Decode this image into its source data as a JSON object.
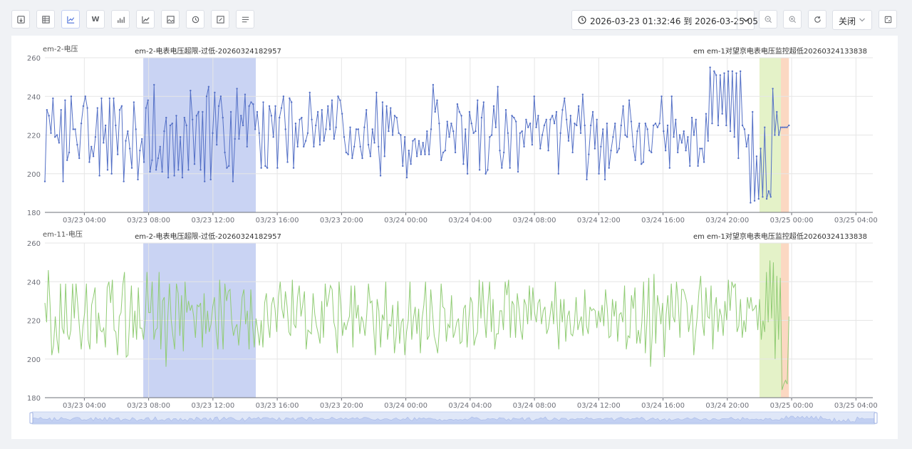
{
  "toolbar": {
    "buttons": [
      {
        "icon": "export-icon"
      },
      {
        "icon": "table-icon"
      },
      {
        "icon": "line-chart-icon",
        "active": true
      },
      {
        "icon": "w-icon",
        "label": "W"
      },
      {
        "icon": "bar-chart-icon"
      },
      {
        "icon": "trend-icon"
      },
      {
        "icon": "image-icon"
      },
      {
        "icon": "history-icon"
      },
      {
        "icon": "picture-edit-icon"
      },
      {
        "icon": "list-icon"
      }
    ],
    "date_range": "2026-03-23 01:32:46 到 2026-03-25 05:03",
    "zoom_out_icon": "zoom-out-icon",
    "zoom_in_icon": "zoom-in-icon",
    "refresh_icon": "refresh-icon",
    "select_value": "关闭",
    "fullscreen_icon": "fullscreen-icon"
  },
  "colors": {
    "series1": "#5470c6",
    "series2": "#91cc75",
    "band_blue": "#c9d3f3",
    "band_green": "#e4f2c8",
    "band_orange": "#fbd8c2",
    "grid": "#e6e6e6",
    "axis": "#6e7079"
  },
  "chart_data": [
    {
      "type": "line",
      "title": "em-2-电压",
      "x_start": "2026-03-23 01:32:46",
      "x_end": "2026-03-25 05:03",
      "x_ticks": [
        "03/23 04:00",
        "03/23 08:00",
        "03/23 12:00",
        "03/23 16:00",
        "03/23 20:00",
        "03/24 00:00",
        "03/24 04:00",
        "03/24 08:00",
        "03/24 12:00",
        "03/24 16:00",
        "03/24 20:00",
        "03/25 00:00",
        "03/25 04:00"
      ],
      "ylim": [
        180,
        260
      ],
      "y_ticks": [
        180,
        200,
        220,
        240,
        260
      ],
      "annotations": [
        {
          "label": "em-2-电表电压超限-过低-20260324182957",
          "start": "2026-03-23 07:40",
          "end": "2026-03-23 14:40",
          "color": "band_blue"
        },
        {
          "label": "em em-1对望京电表电压监控超低20260324133838",
          "start": "2026-03-24 22:00",
          "end": "2026-03-24 23:20",
          "color": "band_green"
        },
        {
          "label": "",
          "start": "2026-03-24 23:20",
          "end": "2026-03-24 23:50",
          "color": "band_orange"
        }
      ],
      "series": [
        {
          "values": [
            196,
            233,
            230,
            221,
            239,
            219,
            220,
            216,
            233,
            196,
            238,
            207,
            211,
            240,
            223,
            223,
            215,
            208,
            226,
            235,
            240,
            234,
            206,
            214,
            209,
            219,
            234,
            199,
            239,
            216,
            225,
            202,
            239,
            200,
            239,
            225,
            210,
            233,
            235,
            196,
            217,
            222,
            213,
            203,
            237,
            223,
            197,
            212,
            218,
            206,
            234,
            238,
            201,
            207,
            246,
            202,
            208,
            214,
            201,
            222,
            229,
            198,
            225,
            226,
            199,
            230,
            202,
            219,
            198,
            229,
            225,
            202,
            243,
            228,
            205,
            230,
            232,
            202,
            232,
            196,
            240,
            245,
            197,
            221,
            242,
            215,
            235,
            240,
            229,
            211,
            203,
            204,
            232,
            196,
            218,
            244,
            218,
            230,
            225,
            241,
            214,
            235,
            237,
            236,
            223,
            232,
            221,
            203,
            237,
            204,
            203,
            235,
            230,
            219,
            235,
            203,
            229,
            234,
            240,
            223,
            206,
            239,
            237,
            203,
            226,
            214,
            228,
            229,
            214,
            217,
            221,
            242,
            228,
            214,
            225,
            232,
            215,
            233,
            217,
            223,
            235,
            223,
            238,
            218,
            224,
            240,
            238,
            231,
            219,
            211,
            210,
            224,
            208,
            214,
            223,
            223,
            214,
            208,
            224,
            233,
            215,
            209,
            223,
            216,
            242,
            214,
            199,
            237,
            209,
            235,
            222,
            234,
            220,
            230,
            229,
            221,
            220,
            204,
            219,
            198,
            212,
            205,
            217,
            218,
            209,
            217,
            210,
            216,
            210,
            222,
            210,
            223,
            246,
            232,
            238,
            226,
            207,
            211,
            212,
            227,
            219,
            226,
            222,
            211,
            236,
            232,
            230,
            205,
            223,
            200,
            232,
            226,
            221,
            222,
            238,
            202,
            229,
            237,
            200,
            202,
            219,
            220,
            235,
            224,
            245,
            212,
            203,
            211,
            233,
            221,
            203,
            230,
            229,
            227,
            201,
            221,
            222,
            214,
            228,
            224,
            226,
            215,
            240,
            224,
            230,
            213,
            220,
            225,
            228,
            212,
            228,
            230,
            226,
            232,
            200,
            221,
            233,
            239,
            228,
            217,
            230,
            211,
            226,
            225,
            235,
            221,
            241,
            225,
            197,
            210,
            225,
            232,
            213,
            228,
            200,
            214,
            223,
            197,
            226,
            203,
            212,
            219,
            226,
            211,
            213,
            225,
            235,
            220,
            219,
            238,
            227,
            214,
            207,
            222,
            226,
            205,
            206,
            226,
            223,
            212,
            211,
            225,
            226,
            224,
            226,
            240,
            222,
            212,
            225,
            203,
            240,
            219,
            228,
            211,
            220,
            216,
            222,
            212,
            219,
            204,
            229,
            220,
            228,
            204,
            213,
            213,
            206,
            231,
            217,
            255,
            226,
            253,
            251,
            225,
            251,
            231,
            252,
            225,
            253,
            222,
            253,
            219,
            252,
            208,
            253,
            225,
            223,
            214,
            220,
            185,
            232,
            186,
            209,
            187,
            213,
            188,
            224,
            187,
            191,
            188,
            244,
            220,
            232,
            220,
            224,
            224,
            224,
            224,
            225
          ]
        }
      ]
    },
    {
      "type": "line",
      "title": "em-11-电压",
      "x_start": "2026-03-23 01:32:46",
      "x_end": "2026-03-25 05:03",
      "x_ticks": [
        "03/23 04:00",
        "03/23 08:00",
        "03/23 12:00",
        "03/23 16:00",
        "03/23 20:00",
        "03/24 00:00",
        "03/24 04:00",
        "03/24 08:00",
        "03/24 12:00",
        "03/24 16:00",
        "03/24 20:00",
        "03/25 00:00",
        "03/25 04:00"
      ],
      "ylim": [
        180,
        260
      ],
      "y_ticks": [
        180,
        200,
        220,
        240,
        260
      ],
      "annotations": [
        {
          "label": "em-2-电表电压超限-过低-20260324182957",
          "start": "2026-03-23 07:40",
          "end": "2026-03-23 14:40",
          "color": "band_blue"
        },
        {
          "label": "em em-1对望京电表电压监控超低20260324133838",
          "start": "2026-03-24 22:00",
          "end": "2026-03-24 23:20",
          "color": "band_green"
        },
        {
          "label": "",
          "start": "2026-03-24 23:20",
          "end": "2026-03-24 23:50",
          "color": "band_orange"
        }
      ],
      "series": [
        {
          "values": [
            229,
            219,
            246,
            228,
            202,
            207,
            222,
            210,
            203,
            239,
            216,
            213,
            239,
            213,
            210,
            215,
            239,
            221,
            239,
            228,
            216,
            205,
            217,
            224,
            239,
            210,
            205,
            228,
            232,
            237,
            208,
            224,
            215,
            214,
            216,
            206,
            237,
            240,
            229,
            241,
            215,
            214,
            202,
            222,
            224,
            238,
            245,
            201,
            202,
            221,
            238,
            211,
            225,
            210,
            237,
            216,
            216,
            210,
            221,
            245,
            224,
            224,
            240,
            210,
            215,
            216,
            245,
            205,
            230,
            232,
            196,
            221,
            239,
            220,
            212,
            205,
            239,
            234,
            212,
            233,
            204,
            240,
            224,
            230,
            225,
            228,
            222,
            211,
            228,
            227,
            229,
            206,
            234,
            213,
            225,
            214,
            218,
            227,
            232,
            214,
            205,
            241,
            223,
            205,
            239,
            230,
            235,
            236,
            219,
            212,
            216,
            218,
            207,
            218,
            232,
            236,
            218,
            225,
            205,
            236,
            218,
            206,
            221,
            215,
            207,
            220,
            206,
            229,
            234,
            218,
            211,
            228,
            232,
            226,
            214,
            232,
            240,
            226,
            221,
            235,
            227,
            214,
            212,
            241,
            218,
            216,
            232,
            238,
            222,
            228,
            235,
            205,
            215,
            214,
            213,
            234,
            223,
            217,
            213,
            208,
            230,
            211,
            239,
            227,
            232,
            238,
            236,
            219,
            215,
            203,
            240,
            228,
            212,
            219,
            215,
            219,
            222,
            238,
            206,
            238,
            221,
            228,
            213,
            222,
            219,
            212,
            223,
            239,
            229,
            230,
            216,
            202,
            231,
            225,
            206,
            223,
            220,
            240,
            210,
            218,
            217,
            228,
            203,
            212,
            230,
            208,
            219,
            221,
            202,
            214,
            220,
            240,
            210,
            221,
            227,
            213,
            226,
            203,
            221,
            228,
            240,
            210,
            212,
            236,
            224,
            212,
            208,
            203,
            216,
            239,
            227,
            226,
            209,
            218,
            216,
            233,
            211,
            214,
            219,
            221,
            208,
            209,
            226,
            228,
            206,
            221,
            232,
            229,
            207,
            211,
            214,
            241,
            221,
            240,
            222,
            211,
            228,
            240,
            214,
            231,
            205,
            213,
            213,
            225,
            225,
            215,
            240,
            233,
            241,
            211,
            230,
            228,
            211,
            234,
            226,
            215,
            210,
            231,
            228,
            218,
            238,
            220,
            237,
            224,
            219,
            229,
            231,
            218,
            225,
            227,
            213,
            216,
            223,
            230,
            218,
            240,
            220,
            205,
            231,
            219,
            231,
            209,
            222,
            225,
            213,
            212,
            218,
            232,
            215,
            219,
            222,
            212,
            236,
            217,
            213,
            227,
            225,
            226,
            225,
            216,
            225,
            219,
            228,
            217,
            236,
            226,
            211,
            212,
            231,
            222,
            230,
            209,
            223,
            224,
            219,
            238,
            205,
            212,
            211,
            233,
            226,
            237,
            208,
            215,
            208,
            219,
            240,
            203,
            221,
            242,
            196,
            213,
            244,
            208,
            233,
            227,
            218,
            229,
            201,
            223,
            233,
            215,
            239,
            222,
            219,
            240,
            230,
            211,
            236,
            236,
            233,
            229,
            214,
            220,
            228,
            202,
            213,
            222,
            235,
            243,
            219,
            212,
            237,
            222,
            221,
            238,
            205,
            226,
            232,
            214,
            226,
            222,
            212,
            230,
            220,
            241,
            225,
            240,
            237,
            239,
            214,
            217,
            231,
            211,
            220,
            214,
            232,
            226,
            232,
            225,
            226,
            228,
            215,
            231,
            210,
            220,
            214,
            245,
            219,
            251,
            221,
            250,
            200,
            243,
            210,
            242,
            184,
            187,
            189,
            187,
            222
          ]
        }
      ]
    }
  ]
}
